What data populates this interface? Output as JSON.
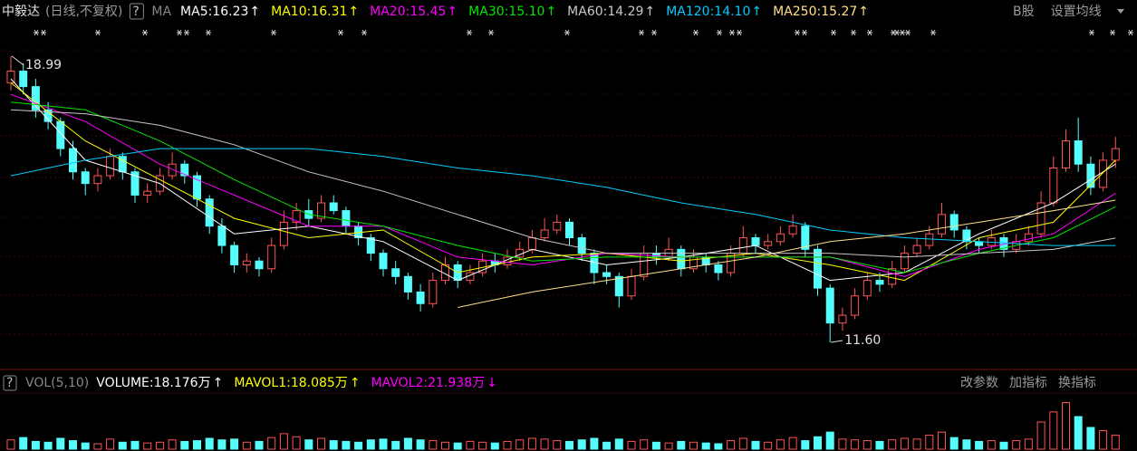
{
  "chart_data": {
    "type": "candlestick",
    "header": {
      "name": "中毅达",
      "period": "(日线,不复权)",
      "help": "?",
      "ma": "MA",
      "right": [
        "B股",
        "设置均线"
      ]
    },
    "ylim": [
      10.97,
      19.15
    ],
    "ohlc": [
      [
        18.3,
        18.99,
        18.1,
        18.6
      ],
      [
        18.6,
        18.8,
        18.0,
        18.2
      ],
      [
        18.2,
        18.4,
        17.4,
        17.6
      ],
      [
        17.6,
        17.8,
        17.1,
        17.3
      ],
      [
        17.3,
        17.4,
        16.4,
        16.6
      ],
      [
        16.6,
        16.8,
        15.8,
        16.0
      ],
      [
        16.0,
        16.1,
        15.4,
        15.7
      ],
      [
        15.7,
        16.1,
        15.5,
        15.9
      ],
      [
        15.9,
        16.6,
        15.8,
        16.4
      ],
      [
        16.4,
        16.5,
        15.8,
        16.0
      ],
      [
        16.0,
        16.1,
        15.2,
        15.4
      ],
      [
        15.4,
        15.7,
        15.2,
        15.5
      ],
      [
        15.5,
        16.1,
        15.4,
        15.9
      ],
      [
        15.9,
        16.5,
        15.8,
        16.2
      ],
      [
        16.2,
        16.3,
        15.7,
        15.9
      ],
      [
        15.9,
        16.0,
        15.1,
        15.3
      ],
      [
        15.3,
        15.4,
        14.4,
        14.6
      ],
      [
        14.6,
        14.8,
        13.9,
        14.1
      ],
      [
        14.1,
        14.2,
        13.4,
        13.6
      ],
      [
        13.6,
        13.9,
        13.4,
        13.7
      ],
      [
        13.7,
        13.8,
        13.3,
        13.5
      ],
      [
        13.5,
        14.3,
        13.4,
        14.1
      ],
      [
        14.1,
        15.0,
        14.0,
        14.7
      ],
      [
        14.7,
        15.2,
        14.5,
        15.0
      ],
      [
        15.0,
        15.3,
        14.6,
        14.8
      ],
      [
        14.8,
        15.4,
        14.7,
        15.2
      ],
      [
        15.2,
        15.4,
        14.9,
        15.0
      ],
      [
        15.0,
        15.1,
        14.4,
        14.6
      ],
      [
        14.6,
        14.7,
        14.1,
        14.3
      ],
      [
        14.3,
        14.4,
        13.7,
        13.9
      ],
      [
        13.9,
        14.0,
        13.3,
        13.5
      ],
      [
        13.5,
        13.7,
        13.1,
        13.3
      ],
      [
        13.3,
        13.4,
        12.7,
        12.9
      ],
      [
        12.9,
        13.1,
        12.4,
        12.6
      ],
      [
        12.6,
        13.4,
        12.5,
        13.2
      ],
      [
        13.2,
        13.8,
        13.1,
        13.6
      ],
      [
        13.6,
        13.7,
        13.0,
        13.2
      ],
      [
        13.2,
        13.6,
        13.1,
        13.4
      ],
      [
        13.4,
        13.9,
        13.3,
        13.7
      ],
      [
        13.7,
        13.9,
        13.4,
        13.6
      ],
      [
        13.6,
        14.0,
        13.5,
        13.8
      ],
      [
        13.8,
        14.2,
        13.7,
        14.0
      ],
      [
        14.0,
        14.5,
        13.9,
        14.3
      ],
      [
        14.3,
        14.8,
        14.2,
        14.5
      ],
      [
        14.5,
        14.9,
        14.4,
        14.7
      ],
      [
        14.7,
        14.8,
        14.1,
        14.3
      ],
      [
        14.3,
        14.4,
        13.7,
        13.9
      ],
      [
        13.9,
        14.0,
        13.1,
        13.4
      ],
      [
        13.4,
        13.6,
        13.1,
        13.3
      ],
      [
        13.3,
        13.4,
        12.5,
        12.8
      ],
      [
        12.8,
        13.5,
        12.7,
        13.3
      ],
      [
        13.3,
        14.1,
        13.2,
        13.9
      ],
      [
        13.9,
        14.1,
        13.6,
        13.8
      ],
      [
        13.8,
        14.3,
        13.7,
        14.0
      ],
      [
        14.0,
        14.1,
        13.3,
        13.5
      ],
      [
        13.5,
        14.0,
        13.4,
        13.8
      ],
      [
        13.8,
        13.9,
        13.4,
        13.6
      ],
      [
        13.6,
        13.7,
        13.2,
        13.4
      ],
      [
        13.4,
        14.1,
        13.3,
        13.9
      ],
      [
        13.9,
        14.6,
        13.8,
        14.3
      ],
      [
        14.3,
        14.4,
        13.9,
        14.1
      ],
      [
        14.1,
        14.4,
        14.0,
        14.2
      ],
      [
        14.2,
        14.6,
        14.1,
        14.4
      ],
      [
        14.4,
        14.9,
        14.3,
        14.6
      ],
      [
        14.6,
        14.7,
        13.8,
        14.0
      ],
      [
        14.0,
        14.1,
        12.8,
        13.0
      ],
      [
        13.0,
        13.1,
        11.6,
        12.1
      ],
      [
        12.1,
        12.5,
        11.9,
        12.3
      ],
      [
        12.3,
        13.0,
        12.2,
        12.8
      ],
      [
        12.8,
        13.4,
        12.7,
        13.2
      ],
      [
        13.2,
        13.4,
        12.9,
        13.1
      ],
      [
        13.1,
        13.7,
        13.0,
        13.5
      ],
      [
        13.5,
        14.1,
        13.4,
        13.9
      ],
      [
        13.9,
        14.3,
        13.8,
        14.1
      ],
      [
        14.1,
        14.6,
        14.0,
        14.4
      ],
      [
        14.4,
        15.2,
        14.3,
        14.9
      ],
      [
        14.9,
        15.0,
        14.3,
        14.5
      ],
      [
        14.5,
        14.6,
        14.0,
        14.2
      ],
      [
        14.2,
        14.3,
        13.9,
        14.1
      ],
      [
        14.1,
        14.5,
        14.0,
        14.3
      ],
      [
        14.3,
        14.4,
        13.8,
        14.0
      ],
      [
        14.0,
        14.4,
        13.9,
        14.2
      ],
      [
        14.2,
        14.6,
        14.1,
        14.4
      ],
      [
        14.4,
        15.5,
        14.3,
        15.2
      ],
      [
        15.2,
        16.4,
        15.1,
        16.1
      ],
      [
        16.1,
        17.1,
        16.0,
        16.8
      ],
      [
        16.8,
        17.4,
        16.0,
        16.2
      ],
      [
        16.2,
        16.4,
        15.4,
        15.6
      ],
      [
        15.6,
        16.5,
        15.5,
        16.3
      ],
      [
        16.3,
        16.9,
        16.1,
        16.6
      ]
    ],
    "up_color": "#ff5454",
    "down_color": "#54fcfc",
    "annotations": [
      {
        "value": 18.99,
        "label": "18.99"
      },
      {
        "value": 11.6,
        "label": "11.60"
      }
    ],
    "ma_x": [
      0,
      6,
      12,
      18,
      24,
      30,
      36,
      42,
      48,
      54,
      60,
      66,
      72,
      78,
      84,
      89
    ],
    "series": [
      {
        "name": "MA5",
        "label": "MA5:16.23",
        "arrow": "↑",
        "color": "#ffffff",
        "values": [
          18.4,
          16.3,
          15.7,
          14.4,
          14.6,
          14.2,
          13.2,
          14.0,
          13.6,
          13.8,
          14.1,
          13.2,
          13.4,
          14.4,
          15.2,
          16.2
        ]
      },
      {
        "name": "MA10",
        "label": "MA10:16.31",
        "arrow": "↑",
        "color": "#ffff00",
        "values": [
          18.3,
          16.8,
          15.8,
          14.8,
          14.3,
          14.5,
          13.4,
          13.8,
          13.9,
          13.7,
          13.9,
          13.6,
          13.2,
          14.3,
          14.7,
          16.3
        ]
      },
      {
        "name": "MA20",
        "label": "MA20:15.45",
        "arrow": "↑",
        "color": "#ff00ff",
        "values": [
          18.0,
          17.3,
          16.2,
          15.4,
          14.6,
          14.6,
          13.8,
          13.6,
          13.9,
          13.8,
          13.8,
          13.8,
          13.3,
          14.0,
          14.4,
          15.45
        ]
      },
      {
        "name": "MA30",
        "label": "MA30:15.10",
        "arrow": "↑",
        "color": "#00e600",
        "values": [
          17.8,
          17.6,
          16.8,
          15.8,
          14.9,
          14.6,
          14.1,
          13.7,
          13.8,
          13.8,
          13.8,
          13.8,
          13.4,
          13.9,
          14.3,
          15.1
        ]
      },
      {
        "name": "MA60",
        "label": "MA60:14.29",
        "arrow": "↑",
        "color": "#c8c8c8",
        "values": [
          17.6,
          17.5,
          17.2,
          16.7,
          16.0,
          15.5,
          14.9,
          14.3,
          13.9,
          13.9,
          13.9,
          13.9,
          13.8,
          13.9,
          14.0,
          14.29
        ]
      },
      {
        "name": "MA120",
        "label": "MA120:14.10",
        "arrow": "↑",
        "color": "#00ccff",
        "values": [
          15.9,
          16.3,
          16.6,
          16.6,
          16.6,
          16.4,
          16.1,
          15.9,
          15.6,
          15.2,
          14.9,
          14.5,
          14.3,
          14.2,
          14.1,
          14.1
        ]
      },
      {
        "name": "MA250",
        "label": "MA250:15.27",
        "arrow": "↑",
        "color": "#ffe08a",
        "values": [
          null,
          null,
          null,
          null,
          null,
          null,
          12.5,
          12.9,
          13.2,
          13.5,
          13.8,
          14.2,
          14.4,
          14.7,
          15.0,
          15.27
        ]
      }
    ],
    "volume": {
      "help": "?",
      "title": "VOL(5,10)",
      "right": [
        "改参数",
        "加指标",
        "换指标"
      ],
      "items": [
        {
          "label": "VOLUME:18.176万",
          "arrow": "↑",
          "color": "#ffffff"
        },
        {
          "label": "MAVOL1:18.085万",
          "arrow": "↑",
          "color": "#ffff00"
        },
        {
          "label": "MAVOL2:21.938万",
          "arrow": "↓",
          "color": "#ff00ff"
        }
      ],
      "ylim": [
        0,
        70
      ],
      "values": [
        12,
        15,
        10,
        9,
        14,
        11,
        8,
        7,
        13,
        9,
        10,
        8,
        9,
        12,
        10,
        11,
        14,
        12,
        13,
        9,
        10,
        15,
        20,
        16,
        12,
        14,
        11,
        10,
        9,
        12,
        13,
        10,
        14,
        12,
        11,
        9,
        8,
        10,
        9,
        8,
        10,
        12,
        14,
        13,
        11,
        10,
        12,
        14,
        9,
        13,
        10,
        12,
        9,
        8,
        10,
        9,
        8,
        7,
        11,
        14,
        10,
        9,
        12,
        15,
        11,
        16,
        22,
        13,
        12,
        11,
        10,
        12,
        14,
        13,
        18,
        22,
        15,
        12,
        10,
        11,
        9,
        11,
        13,
        35,
        48,
        60,
        42,
        28,
        24,
        18.176
      ]
    }
  }
}
